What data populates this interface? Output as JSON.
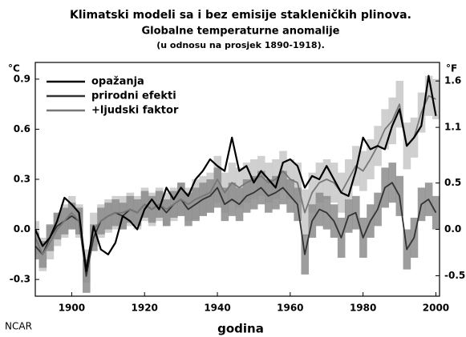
{
  "chart_data": {
    "type": "line",
    "title": "Klimatski modeli sa i bez emisije stakleničkih plinova.",
    "subtitle": "Globalne temperaturne anomalije",
    "note": "(u odnosu na prosjek 1890-1918).",
    "xlabel": "godina",
    "ylabel": "°C",
    "y2label": "°F",
    "credit": "NCAR",
    "legend": "upper left",
    "x": [
      1890,
      1892,
      1894,
      1896,
      1898,
      1900,
      1902,
      1904,
      1906,
      1908,
      1910,
      1912,
      1914,
      1916,
      1918,
      1920,
      1922,
      1924,
      1926,
      1928,
      1930,
      1932,
      1934,
      1936,
      1938,
      1940,
      1942,
      1944,
      1946,
      1948,
      1950,
      1952,
      1954,
      1956,
      1958,
      1960,
      1962,
      1964,
      1966,
      1968,
      1970,
      1972,
      1974,
      1976,
      1978,
      1980,
      1982,
      1984,
      1986,
      1988,
      1990,
      1992,
      1994,
      1996,
      1998,
      2000
    ],
    "xlim": [
      1890,
      2001
    ],
    "xticks": [
      1900,
      1920,
      1940,
      1960,
      1980,
      2000
    ],
    "ylim": [
      -0.4,
      1.0
    ],
    "yticks": [
      0.9,
      0.6,
      0.3,
      {
        "value": 0,
        "label": "0.0"
      },
      -0.3
    ],
    "y2lim": [
      -0.72,
      1.8
    ],
    "y2ticks": [
      1.6,
      1.1,
      0.5,
      {
        "value": 0,
        "label": "0.0"
      },
      -0.5
    ],
    "series": [
      {
        "name": "opažanja",
        "color": "#000000",
        "values": [
          0.0,
          -0.1,
          -0.05,
          0.05,
          0.19,
          0.15,
          0.1,
          -0.25,
          0.02,
          -0.12,
          -0.15,
          -0.08,
          0.08,
          0.05,
          0.0,
          0.12,
          0.18,
          0.12,
          0.25,
          0.18,
          0.25,
          0.2,
          0.3,
          0.35,
          0.42,
          0.38,
          0.35,
          0.55,
          0.35,
          0.38,
          0.28,
          0.35,
          0.3,
          0.25,
          0.4,
          0.42,
          0.38,
          0.25,
          0.32,
          0.3,
          0.38,
          0.3,
          0.22,
          0.2,
          0.35,
          0.55,
          0.48,
          0.5,
          0.48,
          0.62,
          0.72,
          0.5,
          0.55,
          0.62,
          0.92,
          0.68
        ]
      },
      {
        "name": "prirodni efekti",
        "color": "#333333",
        "band_color": "#8c8c8c",
        "values": [
          -0.1,
          -0.15,
          -0.05,
          0.02,
          0.05,
          0.08,
          0.05,
          -0.28,
          -0.05,
          0.05,
          0.08,
          0.1,
          0.08,
          0.12,
          0.1,
          0.15,
          0.12,
          0.15,
          0.1,
          0.15,
          0.18,
          0.12,
          0.15,
          0.18,
          0.2,
          0.25,
          0.15,
          0.18,
          0.15,
          0.2,
          0.22,
          0.25,
          0.2,
          0.22,
          0.25,
          0.2,
          0.15,
          -0.15,
          0.05,
          0.12,
          0.1,
          0.05,
          -0.05,
          0.08,
          0.1,
          -0.05,
          0.05,
          0.12,
          0.25,
          0.28,
          0.2,
          -0.12,
          -0.05,
          0.15,
          0.18,
          0.1
        ],
        "errors": [
          0.08,
          0.08,
          0.08,
          0.08,
          0.08,
          0.08,
          0.08,
          0.1,
          0.08,
          0.08,
          0.08,
          0.08,
          0.08,
          0.08,
          0.08,
          0.08,
          0.08,
          0.08,
          0.08,
          0.08,
          0.1,
          0.1,
          0.1,
          0.1,
          0.1,
          0.12,
          0.1,
          0.1,
          0.1,
          0.1,
          0.1,
          0.1,
          0.1,
          0.1,
          0.1,
          0.1,
          0.1,
          0.12,
          0.1,
          0.1,
          0.1,
          0.1,
          0.12,
          0.1,
          0.1,
          0.12,
          0.1,
          0.1,
          0.12,
          0.12,
          0.12,
          0.12,
          0.12,
          0.1,
          0.1,
          0.1
        ]
      },
      {
        "name": "+ljudski faktor",
        "color": "#777777",
        "band_color": "#c8c8c8",
        "values": [
          -0.05,
          -0.15,
          -0.08,
          0.0,
          0.05,
          0.1,
          0.05,
          -0.22,
          0.0,
          0.05,
          0.08,
          0.1,
          0.1,
          0.12,
          0.1,
          0.15,
          0.12,
          0.15,
          0.12,
          0.15,
          0.18,
          0.15,
          0.18,
          0.2,
          0.22,
          0.3,
          0.22,
          0.28,
          0.25,
          0.28,
          0.3,
          0.32,
          0.28,
          0.3,
          0.35,
          0.3,
          0.28,
          0.1,
          0.22,
          0.28,
          0.3,
          0.28,
          0.22,
          0.3,
          0.38,
          0.35,
          0.42,
          0.5,
          0.6,
          0.65,
          0.75,
          0.5,
          0.55,
          0.7,
          0.8,
          0.78
        ],
        "errors": [
          0.1,
          0.1,
          0.1,
          0.1,
          0.1,
          0.1,
          0.1,
          0.1,
          0.1,
          0.1,
          0.1,
          0.1,
          0.1,
          0.1,
          0.1,
          0.1,
          0.1,
          0.1,
          0.1,
          0.1,
          0.1,
          0.1,
          0.12,
          0.12,
          0.12,
          0.14,
          0.12,
          0.12,
          0.12,
          0.12,
          0.12,
          0.12,
          0.12,
          0.12,
          0.12,
          0.12,
          0.12,
          0.14,
          0.12,
          0.12,
          0.12,
          0.12,
          0.12,
          0.12,
          0.12,
          0.12,
          0.12,
          0.12,
          0.12,
          0.14,
          0.14,
          0.14,
          0.12,
          0.12,
          0.12,
          0.12
        ]
      }
    ]
  }
}
